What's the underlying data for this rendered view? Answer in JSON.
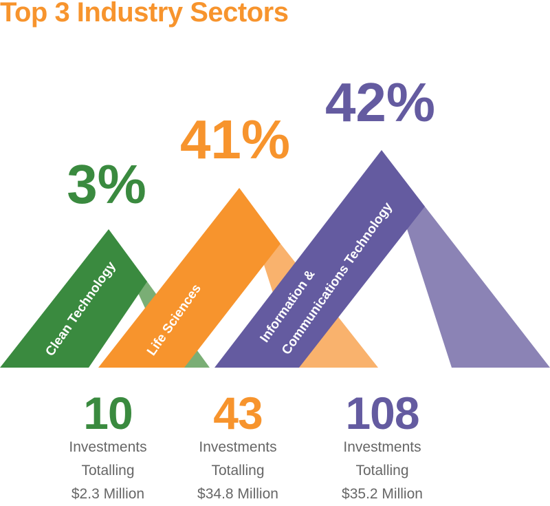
{
  "title": "Top 3 Industry Sectors",
  "chart_data": {
    "type": "bar",
    "title": "Top 3 Industry Sectors",
    "categories": [
      "Clean Technology",
      "Life Sciences",
      "Information & Communications Technology"
    ],
    "values": [
      3,
      41,
      42
    ],
    "value_labels": [
      "3%",
      "41%",
      "42%"
    ],
    "label_lines": [
      [
        "Clean Technology"
      ],
      [
        "Life Sciences"
      ],
      [
        "Information &",
        "Communications Technology"
      ]
    ],
    "investments": [
      10,
      43,
      108
    ],
    "totals": [
      "$2.3 Million",
      "$34.8 Million",
      "$35.2 Million"
    ],
    "colors": [
      "#3a8a3f",
      "#f7942d",
      "#645ba0"
    ],
    "light_colors": [
      "#7aae75",
      "#f9b26d",
      "#8b83b5"
    ]
  },
  "stats": [
    {
      "number": "10",
      "line1": "Investments",
      "line2": "Totalling",
      "line3": "$2.3 Million"
    },
    {
      "number": "43",
      "line1": "Investments",
      "line2": "Totalling",
      "line3": "$34.8 Million"
    },
    {
      "number": "108",
      "line1": "Investments",
      "line2": "Totalling",
      "line3": "$35.2 Million"
    }
  ]
}
